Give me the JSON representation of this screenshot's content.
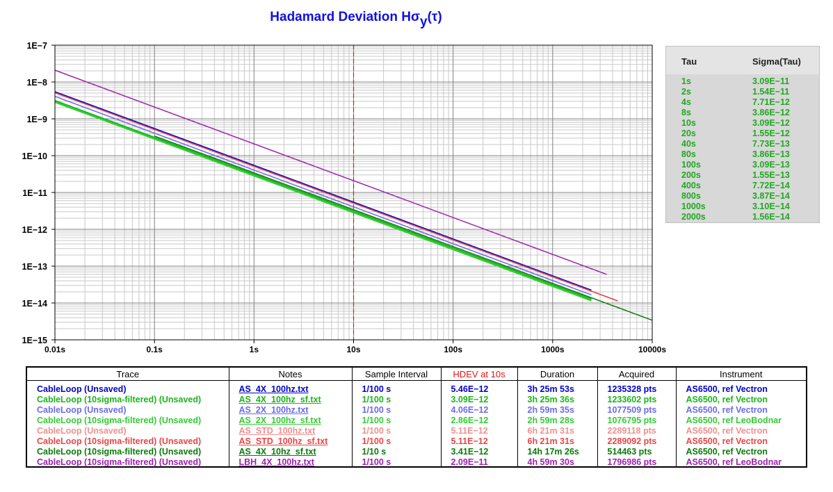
{
  "chart_data": {
    "type": "line",
    "title": "Hadamard Deviation Hσy(τ)",
    "title_main": "Hadamard Deviation Hσ",
    "title_sub": "y",
    "title_tail": "(τ)",
    "x_scale": "log",
    "y_scale": "log",
    "xlim": [
      0.01,
      10000
    ],
    "ylim": [
      1e-15,
      1e-07
    ],
    "x_ticks": [
      "0.01s",
      "0.1s",
      "1s",
      "10s",
      "100s",
      "1000s",
      "10000s"
    ],
    "y_ticks": [
      "1E−7",
      "1E−8",
      "1E−9",
      "1E−10",
      "1E−11",
      "1E−12",
      "1E−13",
      "1E−14",
      "1E−15"
    ],
    "grid": true,
    "marker_x": 10,
    "marker_color": "#cc2020",
    "series": [
      {
        "name": "CableLoop (Unsaved)",
        "color": "#0000cc",
        "width": 1.5,
        "x": [
          0.01,
          2450
        ],
        "y": [
          5.46e-09,
          2.23e-14
        ]
      },
      {
        "name": "CableLoop (10sigma-filtered) (Unsaved)",
        "color": "#1ab51a",
        "width": 2.5,
        "x": [
          0.01,
          2450
        ],
        "y": [
          3.09e-09,
          1.26e-14
        ]
      },
      {
        "name": "CableLoop (Unsaved)",
        "color": "#6a6aee",
        "width": 1.5,
        "x": [
          0.01,
          2450
        ],
        "y": [
          4.06e-09,
          1.66e-14
        ]
      },
      {
        "name": "CableLoop (10sigma-filtered) (Unsaved)",
        "color": "#33cc33",
        "width": 2.5,
        "x": [
          0.01,
          2450
        ],
        "y": [
          2.86e-09,
          1.17e-14
        ]
      },
      {
        "name": "CableLoop (Unsaved)",
        "color": "#f09090",
        "width": 1.5,
        "x": [
          0.01,
          4500
        ],
        "y": [
          5.11e-09,
          1.14e-14
        ]
      },
      {
        "name": "CableLoop (10sigma-filtered) (Unsaved)",
        "color": "#ee4444",
        "width": 1.5,
        "x": [
          0.01,
          4500
        ],
        "y": [
          5.11e-09,
          1.14e-14
        ]
      },
      {
        "name": "CableLoop (10sigma-filtered) (Unsaved)",
        "color": "#0a7a0a",
        "width": 1.5,
        "x": [
          0.1,
          10000
        ],
        "y": [
          3.41e-10,
          3.41e-15
        ]
      },
      {
        "name": "CableLoop (10sigma-filtered) (Unsaved)",
        "color": "#a020b0",
        "width": 1.5,
        "x": [
          0.01,
          3500
        ],
        "y": [
          2.09e-08,
          5.97e-14
        ]
      }
    ]
  },
  "tau_table": {
    "headers": {
      "tau": "Tau",
      "sigma": "Sigma(Tau)"
    },
    "rows": [
      {
        "tau": "1s",
        "sigma": "3.09E−11"
      },
      {
        "tau": "2s",
        "sigma": "1.54E−11"
      },
      {
        "tau": "4s",
        "sigma": "7.71E−12"
      },
      {
        "tau": "8s",
        "sigma": "3.86E−12"
      },
      {
        "tau": "10s",
        "sigma": "3.09E−12"
      },
      {
        "tau": "20s",
        "sigma": "1.55E−12"
      },
      {
        "tau": "40s",
        "sigma": "7.73E−13"
      },
      {
        "tau": "80s",
        "sigma": "3.86E−13"
      },
      {
        "tau": "100s",
        "sigma": "3.09E−13"
      },
      {
        "tau": "200s",
        "sigma": "1.55E−13"
      },
      {
        "tau": "400s",
        "sigma": "7.72E−14"
      },
      {
        "tau": "800s",
        "sigma": "3.87E−14"
      },
      {
        "tau": "1000s",
        "sigma": "3.10E−14"
      },
      {
        "tau": "2000s",
        "sigma": "1.56E−14"
      }
    ]
  },
  "legend": {
    "headers": {
      "trace": "Trace",
      "notes": "Notes",
      "interval": "Sample Interval",
      "hdev": "HDEV at 10s",
      "duration": "Duration",
      "acquired": "Acquired",
      "instrument": "Instrument"
    },
    "hdev_header_color": "#ee1111",
    "rows": [
      {
        "color": "#0000cc",
        "trace": "CableLoop (Unsaved)",
        "notes": "AS_4X_100hz.txt",
        "interval": "1/100 s",
        "hdev": "5.46E−12",
        "duration": "3h 25m 53s",
        "acquired": "1235328 pts",
        "instrument": "AS6500, ref Vectron"
      },
      {
        "color": "#1ab51a",
        "trace": "CableLoop (10sigma-filtered) (Unsaved)",
        "notes": "AS_4X_100hz_sf.txt",
        "interval": "1/100 s",
        "hdev": "3.09E−12",
        "duration": "3h 25m 36s",
        "acquired": "1233602 pts",
        "instrument": "AS6500, ref Vectron"
      },
      {
        "color": "#6a6aee",
        "trace": "CableLoop (Unsaved)",
        "notes": "AS_2X_100hz.txt",
        "interval": "1/100 s",
        "hdev": "4.06E−12",
        "duration": "2h 59m 35s",
        "acquired": "1077509 pts",
        "instrument": "AS6500, ref Vectron"
      },
      {
        "color": "#33cc33",
        "trace": "CableLoop (10sigma-filtered) (Unsaved)",
        "notes": "AS_2X_100hz_sf.txt",
        "interval": "1/100 s",
        "hdev": "2.86E−12",
        "duration": "2h 59m 28s",
        "acquired": "1076795 pts",
        "instrument": "AS6500, ref LeoBodnar"
      },
      {
        "color": "#f09090",
        "trace": "CableLoop (Unsaved)",
        "notes": "AS_STD_100hz.txt",
        "interval": "1/100 s",
        "hdev": "5.11E−12",
        "duration": "6h 21m 31s",
        "acquired": "2289118 pts",
        "instrument": "AS6500, ref Vectron"
      },
      {
        "color": "#ee4444",
        "trace": "CableLoop (10sigma-filtered) (Unsaved)",
        "notes": "AS_STD_100hz_sf.txt",
        "interval": "1/100 s",
        "hdev": "5.11E−12",
        "duration": "6h 21m 31s",
        "acquired": "2289092 pts",
        "instrument": "AS6500, ref Vectron"
      },
      {
        "color": "#0a7a0a",
        "trace": "CableLoop (10sigma-filtered) (Unsaved)",
        "notes": "AS_4X_10hz_sf.txt",
        "interval": "1/10 s",
        "hdev": "3.41E−12",
        "duration": "14h 17m 26s",
        "acquired": "514463 pts",
        "instrument": "AS6500, ref Vectron"
      },
      {
        "color": "#a020b0",
        "trace": "CableLoop (10sigma-filtered) (Unsaved)",
        "notes": "LBH_4X_100hz.txt",
        "interval": "1/100 s",
        "hdev": "2.09E−11",
        "duration": "4h 59m 30s",
        "acquired": "1796986 pts",
        "instrument": "AS6500, ref LeoBodnar"
      }
    ]
  }
}
